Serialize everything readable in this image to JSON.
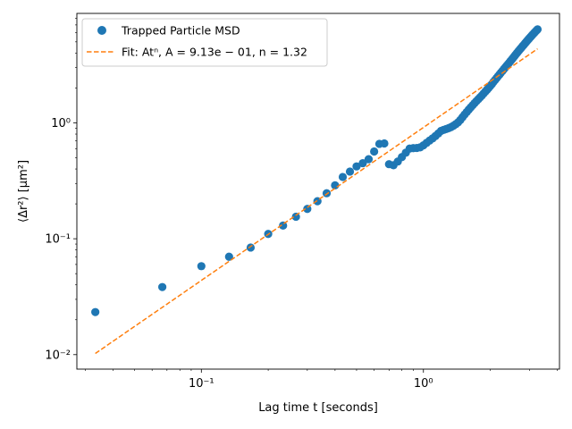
{
  "chart_data": {
    "type": "scatter",
    "xscale": "log",
    "yscale": "log",
    "xlabel": "Lag time t [seconds]",
    "ylabel": "⟨Δr²⟩ [μm²]",
    "xlim": [
      0.0275,
      4.1
    ],
    "ylim": [
      0.0075,
      8.8
    ],
    "x_ticks": [
      {
        "value": 0.1,
        "label": "10⁻¹"
      },
      {
        "value": 1,
        "label": "10⁰"
      }
    ],
    "y_ticks": [
      {
        "value": 0.01,
        "label": "10⁻²"
      },
      {
        "value": 0.1,
        "label": "10⁻¹"
      },
      {
        "value": 1,
        "label": "10⁰"
      }
    ],
    "legend_position": "top-left",
    "series": [
      {
        "name": "Trapped Particle MSD",
        "kind": "markers",
        "color": "#1f77b4",
        "points": [
          [
            0.0333,
            0.0233
          ],
          [
            0.0667,
            0.0383
          ],
          [
            0.1,
            0.058
          ],
          [
            0.1333,
            0.07
          ],
          [
            0.1667,
            0.084
          ],
          [
            0.2,
            0.11
          ],
          [
            0.2333,
            0.13
          ],
          [
            0.2667,
            0.155
          ],
          [
            0.3,
            0.181
          ],
          [
            0.3333,
            0.211
          ],
          [
            0.3667,
            0.247
          ],
          [
            0.4,
            0.289
          ],
          [
            0.4333,
            0.341
          ],
          [
            0.4667,
            0.38
          ],
          [
            0.5,
            0.421
          ],
          [
            0.5333,
            0.449
          ],
          [
            0.5667,
            0.486
          ],
          [
            0.6,
            0.566
          ],
          [
            0.6333,
            0.659
          ],
          [
            0.6667,
            0.664
          ],
          [
            0.7,
            0.44
          ],
          [
            0.7333,
            0.431
          ],
          [
            0.7667,
            0.464
          ],
          [
            0.8,
            0.507
          ],
          [
            0.8333,
            0.553
          ],
          [
            0.8667,
            0.6
          ],
          [
            0.9,
            0.605
          ],
          [
            0.9333,
            0.607
          ],
          [
            0.9667,
            0.615
          ],
          [
            1.0,
            0.64
          ],
          [
            1.0333,
            0.672
          ],
          [
            1.0667,
            0.704
          ],
          [
            1.1,
            0.735
          ],
          [
            1.1333,
            0.77
          ],
          [
            1.1667,
            0.81
          ],
          [
            1.2,
            0.852
          ],
          [
            1.2333,
            0.87
          ],
          [
            1.2667,
            0.885
          ],
          [
            1.3,
            0.9
          ],
          [
            1.3333,
            0.92
          ],
          [
            1.3667,
            0.945
          ],
          [
            1.4,
            0.975
          ],
          [
            1.4333,
            1.01
          ],
          [
            1.4667,
            1.06
          ],
          [
            1.5,
            1.12
          ],
          [
            1.5333,
            1.18
          ],
          [
            1.5667,
            1.24
          ],
          [
            1.6,
            1.3
          ],
          [
            1.6333,
            1.36
          ],
          [
            1.6667,
            1.42
          ],
          [
            1.7,
            1.48
          ],
          [
            1.7333,
            1.54
          ],
          [
            1.7667,
            1.6
          ],
          [
            1.8,
            1.66
          ],
          [
            1.8333,
            1.72
          ],
          [
            1.8667,
            1.79
          ],
          [
            1.9,
            1.86
          ],
          [
            1.9333,
            1.93
          ],
          [
            1.9667,
            2.0
          ],
          [
            2.0,
            2.08
          ],
          [
            2.0333,
            2.16
          ],
          [
            2.0667,
            2.25
          ],
          [
            2.1,
            2.34
          ],
          [
            2.1333,
            2.43
          ],
          [
            2.1667,
            2.52
          ],
          [
            2.2,
            2.61
          ],
          [
            2.2333,
            2.71
          ],
          [
            2.2667,
            2.8
          ],
          [
            2.3,
            2.9
          ],
          [
            2.3333,
            3.0
          ],
          [
            2.3667,
            3.1
          ],
          [
            2.4,
            3.2
          ],
          [
            2.4333,
            3.3
          ],
          [
            2.4667,
            3.41
          ],
          [
            2.5,
            3.52
          ],
          [
            2.5333,
            3.63
          ],
          [
            2.5667,
            3.75
          ],
          [
            2.6,
            3.87
          ],
          [
            2.6333,
            3.99
          ],
          [
            2.6667,
            4.11
          ],
          [
            2.7,
            4.23
          ],
          [
            2.7333,
            4.35
          ],
          [
            2.7667,
            4.47
          ],
          [
            2.8,
            4.6
          ],
          [
            2.8333,
            4.72
          ],
          [
            2.8667,
            4.85
          ],
          [
            2.9,
            4.98
          ],
          [
            2.9333,
            5.11
          ],
          [
            2.9667,
            5.24
          ],
          [
            3.0,
            5.37
          ],
          [
            3.0333,
            5.5
          ],
          [
            3.0667,
            5.63
          ],
          [
            3.1,
            5.76
          ],
          [
            3.1333,
            5.89
          ],
          [
            3.1667,
            6.02
          ],
          [
            3.2,
            6.15
          ],
          [
            3.2333,
            6.28
          ],
          [
            3.2667,
            6.41
          ]
        ]
      },
      {
        "name": "Fit: Atⁿ, A = 9.13e − 01, n = 1.32",
        "kind": "dashed-line",
        "color": "#ff7f0e",
        "A": 0.913,
        "n": 1.32,
        "x_range": [
          0.0333,
          3.2667
        ]
      }
    ]
  }
}
